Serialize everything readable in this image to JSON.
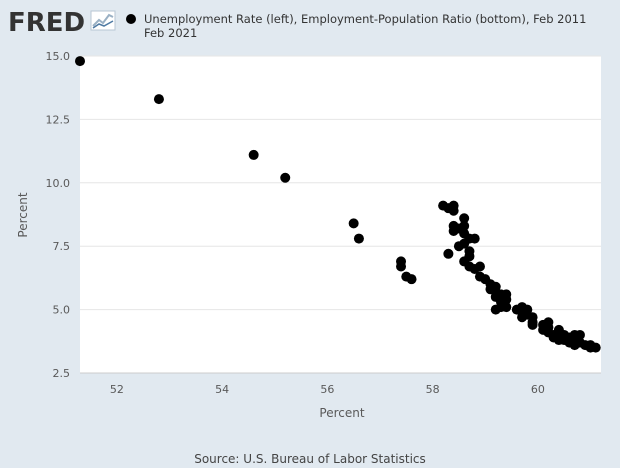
{
  "header": {
    "logo_text": "FRED",
    "logo_icon": "line-graph-icon"
  },
  "chart_data": {
    "type": "scatter",
    "legend": {
      "line1": "Unemployment Rate (left), Employment-Population Ratio (bottom), Feb 2011",
      "line2": "Feb 2021",
      "marker_color": "#000000",
      "placement": "top"
    },
    "xlabel": "Percent",
    "ylabel": "Percent",
    "xlim": [
      51.3,
      61.2
    ],
    "ylim": [
      2.5,
      15.0
    ],
    "xticks": [
      52,
      54,
      56,
      58,
      60
    ],
    "yticks": [
      2.5,
      5.0,
      7.5,
      10.0,
      12.5,
      15.0
    ],
    "xtick_labels": [
      "52",
      "54",
      "56",
      "58",
      "60"
    ],
    "ytick_labels": [
      "2.5",
      "5.0",
      "7.5",
      "10.0",
      "12.5",
      "15.0"
    ],
    "grid": true,
    "series": [
      {
        "color": "#000000",
        "points": [
          [
            51.3,
            14.8
          ],
          [
            52.8,
            13.3
          ],
          [
            54.6,
            11.1
          ],
          [
            55.2,
            10.2
          ],
          [
            56.5,
            8.4
          ],
          [
            56.6,
            7.8
          ],
          [
            57.4,
            6.9
          ],
          [
            57.4,
            6.7
          ],
          [
            57.5,
            6.3
          ],
          [
            57.6,
            6.2
          ],
          [
            58.2,
            9.1
          ],
          [
            58.3,
            9.0
          ],
          [
            58.4,
            9.1
          ],
          [
            58.4,
            8.9
          ],
          [
            58.3,
            7.2
          ],
          [
            58.4,
            8.3
          ],
          [
            58.4,
            8.1
          ],
          [
            58.5,
            8.2
          ],
          [
            58.6,
            8.6
          ],
          [
            58.6,
            8.3
          ],
          [
            58.6,
            8.0
          ],
          [
            58.5,
            7.5
          ],
          [
            58.6,
            7.6
          ],
          [
            58.7,
            7.8
          ],
          [
            58.7,
            7.3
          ],
          [
            58.8,
            7.8
          ],
          [
            58.7,
            7.1
          ],
          [
            58.6,
            6.9
          ],
          [
            58.7,
            6.7
          ],
          [
            58.8,
            6.6
          ],
          [
            58.9,
            6.7
          ],
          [
            58.9,
            6.3
          ],
          [
            59.0,
            6.2
          ],
          [
            59.1,
            6.0
          ],
          [
            59.1,
            5.8
          ],
          [
            59.2,
            5.9
          ],
          [
            59.2,
            5.7
          ],
          [
            59.3,
            5.6
          ],
          [
            59.2,
            5.5
          ],
          [
            59.3,
            5.3
          ],
          [
            59.4,
            5.6
          ],
          [
            59.4,
            5.4
          ],
          [
            59.3,
            5.1
          ],
          [
            59.2,
            5.0
          ],
          [
            59.4,
            5.1
          ],
          [
            59.6,
            5.0
          ],
          [
            59.7,
            5.1
          ],
          [
            59.7,
            4.9
          ],
          [
            59.8,
            5.0
          ],
          [
            59.7,
            4.7
          ],
          [
            59.8,
            4.8
          ],
          [
            59.9,
            4.7
          ],
          [
            59.9,
            4.5
          ],
          [
            59.9,
            4.4
          ],
          [
            60.1,
            4.4
          ],
          [
            60.1,
            4.2
          ],
          [
            60.2,
            4.3
          ],
          [
            60.2,
            4.5
          ],
          [
            60.2,
            4.1
          ],
          [
            60.3,
            4.0
          ],
          [
            60.3,
            3.9
          ],
          [
            60.4,
            4.1
          ],
          [
            60.4,
            3.8
          ],
          [
            60.4,
            4.2
          ],
          [
            60.5,
            3.8
          ],
          [
            60.6,
            3.9
          ],
          [
            60.6,
            3.7
          ],
          [
            60.7,
            3.8
          ],
          [
            60.7,
            3.6
          ],
          [
            60.8,
            3.7
          ],
          [
            60.8,
            4.0
          ],
          [
            60.9,
            3.6
          ],
          [
            61.0,
            3.6
          ],
          [
            61.0,
            3.5
          ],
          [
            61.1,
            3.5
          ],
          [
            60.5,
            4.0
          ],
          [
            60.7,
            4.0
          ]
        ]
      }
    ]
  },
  "footer": {
    "source": "Source: U.S. Bureau of Labor Statistics"
  }
}
